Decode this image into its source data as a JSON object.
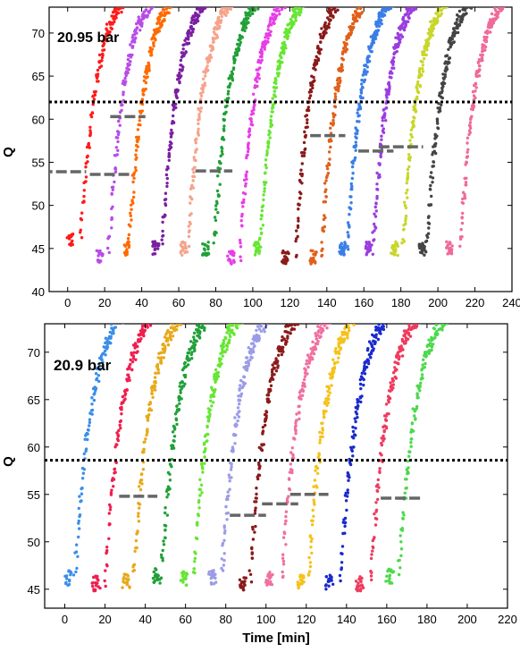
{
  "chart_data": [
    {
      "type": "scatter",
      "annotation": "20.95 bar",
      "xlabel": "",
      "ylabel": "Q",
      "xlim": [
        -10,
        240
      ],
      "ylim": [
        40,
        73
      ],
      "xticks": [
        0,
        20,
        40,
        60,
        80,
        100,
        120,
        140,
        160,
        180,
        200,
        220,
        240
      ],
      "yticks": [
        40,
        45,
        50,
        55,
        60,
        65,
        70
      ],
      "reference_line_y": 62,
      "grid": false,
      "legend": "none",
      "series": [
        {
          "color": "#ff1a1a",
          "start": 0,
          "end": 28,
          "rise": 12,
          "low": 46.0
        },
        {
          "color": "#b84ce8",
          "start": 16,
          "end": 40,
          "rise": 27,
          "low": 44.0
        },
        {
          "color": "#ff6a00",
          "start": 31,
          "end": 52,
          "rise": 38,
          "low": 45.0
        },
        {
          "color": "#7b1fa2",
          "start": 46,
          "end": 64,
          "rise": 56,
          "low": 45.0
        },
        {
          "color": "#f5a48c",
          "start": 61,
          "end": 80,
          "rise": 70,
          "low": 45.0
        },
        {
          "color": "#21a038",
          "start": 73,
          "end": 93,
          "rise": 84,
          "low": 45.0
        },
        {
          "color": "#e83de8",
          "start": 87,
          "end": 107,
          "rise": 98,
          "low": 44.0
        },
        {
          "color": "#66e633",
          "start": 101,
          "end": 120,
          "rise": 109,
          "low": 45.0
        },
        {
          "color": "#8b1a1a",
          "start": 116,
          "end": 136,
          "rise": 128,
          "low": 44.0
        },
        {
          "color": "#e0601a",
          "start": 131,
          "end": 150,
          "rise": 142,
          "low": 44.0
        },
        {
          "color": "#3a7ee8",
          "start": 147,
          "end": 163,
          "rise": 156,
          "low": 45.0
        },
        {
          "color": "#9b3de0",
          "start": 161,
          "end": 178,
          "rise": 170,
          "low": 45.0
        },
        {
          "color": "#c8d62a",
          "start": 175,
          "end": 193,
          "rise": 186,
          "low": 45.0
        },
        {
          "color": "#444444",
          "start": 190,
          "end": 208,
          "rise": 199,
          "low": 45.0
        },
        {
          "color": "#ef6a9a",
          "start": 205,
          "end": 225,
          "rise": 217,
          "low": 45.0
        }
      ],
      "dashes": [
        {
          "x0": -14,
          "x1": 10,
          "y": 53.9
        },
        {
          "x0": 12,
          "x1": 34,
          "y": 53.6
        },
        {
          "x0": 23,
          "x1": 42,
          "y": 60.3
        },
        {
          "x0": 69,
          "x1": 89,
          "y": 54.0
        },
        {
          "x0": 131,
          "x1": 150,
          "y": 58.1
        },
        {
          "x0": 157,
          "x1": 176,
          "y": 56.3
        },
        {
          "x0": 168,
          "x1": 192,
          "y": 56.8
        }
      ]
    },
    {
      "type": "scatter",
      "annotation": "20.9 bar",
      "xlabel": "Time [min]",
      "ylabel": "Q",
      "xlim": [
        -10,
        220
      ],
      "ylim": [
        43,
        73
      ],
      "xticks": [
        0,
        20,
        40,
        60,
        80,
        100,
        120,
        140,
        160,
        180,
        200,
        220
      ],
      "yticks": [
        45,
        50,
        55,
        60,
        65,
        70
      ],
      "reference_line_y": 58.6,
      "grid": false,
      "legend": "none",
      "series": [
        {
          "color": "#3a8ee8",
          "start": 0,
          "end": 32,
          "rise": 10,
          "low": 46.2
        },
        {
          "color": "#ef1f4f",
          "start": 14,
          "end": 40,
          "rise": 25,
          "low": 45.6
        },
        {
          "color": "#e8a91a",
          "start": 29,
          "end": 52,
          "rise": 39,
          "low": 45.8
        },
        {
          "color": "#21a038",
          "start": 44,
          "end": 65,
          "rise": 53,
          "low": 46.4
        },
        {
          "color": "#66e633",
          "start": 58,
          "end": 78,
          "rise": 69,
          "low": 46.2
        },
        {
          "color": "#9b9ce8",
          "start": 72,
          "end": 93,
          "rise": 83,
          "low": 46.2
        },
        {
          "color": "#8b1a1a",
          "start": 87,
          "end": 110,
          "rise": 97,
          "low": 45.6
        },
        {
          "color": "#ef70a0",
          "start": 100,
          "end": 123,
          "rise": 113,
          "low": 46.0
        },
        {
          "color": "#f5c21a",
          "start": 116,
          "end": 138,
          "rise": 126,
          "low": 45.8
        },
        {
          "color": "#1a2acc",
          "start": 130,
          "end": 153,
          "rise": 142,
          "low": 45.8
        },
        {
          "color": "#ef3a5e",
          "start": 145,
          "end": 168,
          "rise": 157,
          "low": 45.6
        },
        {
          "color": "#4cd94c",
          "start": 160,
          "end": 185,
          "rise": 171,
          "low": 46.4
        }
      ],
      "dashes": [
        {
          "x0": 27,
          "x1": 46,
          "y": 54.8
        },
        {
          "x0": 82,
          "x1": 100,
          "y": 52.8
        },
        {
          "x0": 98,
          "x1": 116,
          "y": 54.0
        },
        {
          "x0": 112,
          "x1": 131,
          "y": 55.0
        },
        {
          "x0": 157,
          "x1": 178,
          "y": 54.6
        }
      ]
    }
  ]
}
